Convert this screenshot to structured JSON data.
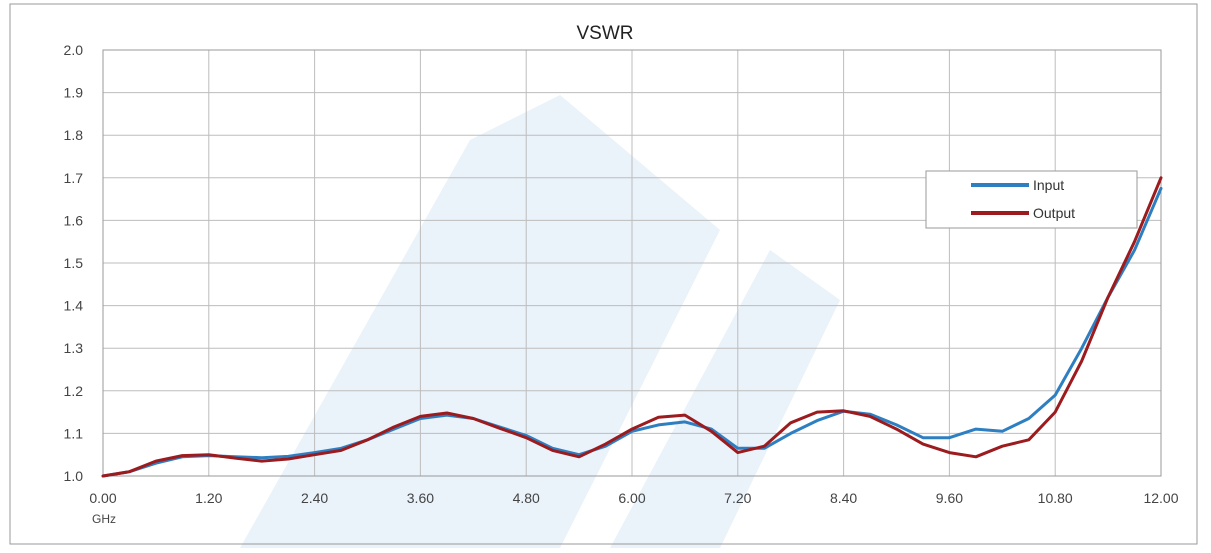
{
  "chart_data": {
    "type": "line",
    "title": "VSWR",
    "xlabel": "",
    "ylabel": "",
    "x_unit_label": "GHz",
    "xlim": [
      0,
      12
    ],
    "ylim": [
      1.0,
      2.0
    ],
    "x_ticks": [
      0,
      1.2,
      2.4,
      3.6,
      4.8,
      6.0,
      7.2,
      8.4,
      9.6,
      10.8,
      12.0
    ],
    "x_tick_labels": [
      "0.00",
      "1.20",
      "2.40",
      "3.60",
      "4.80",
      "6.00",
      "7.20",
      "8.40",
      "9.60",
      "10.80",
      "12.00"
    ],
    "y_ticks": [
      1.0,
      1.1,
      1.2,
      1.3,
      1.4,
      1.5,
      1.6,
      1.7,
      1.8,
      1.9,
      2.0
    ],
    "y_tick_labels": [
      "1.0",
      "1.1",
      "1.2",
      "1.3",
      "1.4",
      "1.5",
      "1.6",
      "1.7",
      "1.8",
      "1.9",
      "2.0"
    ],
    "grid": true,
    "legend_position": "right",
    "series": [
      {
        "name": "Input",
        "color": "#2E7FC1",
        "x": [
          0,
          0.3,
          0.6,
          0.9,
          1.2,
          1.5,
          1.8,
          2.1,
          2.4,
          2.7,
          3.0,
          3.3,
          3.6,
          3.9,
          4.2,
          4.5,
          4.8,
          5.1,
          5.4,
          5.7,
          6.0,
          6.3,
          6.6,
          6.9,
          7.2,
          7.5,
          7.8,
          8.1,
          8.4,
          8.7,
          9.0,
          9.3,
          9.6,
          9.9,
          10.2,
          10.5,
          10.8,
          11.1,
          11.4,
          11.7,
          12.0
        ],
        "values": [
          1.0,
          1.01,
          1.03,
          1.045,
          1.048,
          1.045,
          1.043,
          1.046,
          1.055,
          1.065,
          1.085,
          1.11,
          1.135,
          1.143,
          1.135,
          1.115,
          1.095,
          1.065,
          1.05,
          1.07,
          1.105,
          1.12,
          1.127,
          1.11,
          1.065,
          1.065,
          1.1,
          1.13,
          1.152,
          1.145,
          1.12,
          1.09,
          1.09,
          1.11,
          1.105,
          1.135,
          1.19,
          1.3,
          1.42,
          1.53,
          1.675
        ]
      },
      {
        "name": "Output",
        "color": "#9B1B1E",
        "x": [
          0,
          0.3,
          0.6,
          0.9,
          1.2,
          1.5,
          1.8,
          2.1,
          2.4,
          2.7,
          3.0,
          3.3,
          3.6,
          3.9,
          4.2,
          4.5,
          4.8,
          5.1,
          5.4,
          5.7,
          6.0,
          6.3,
          6.6,
          6.9,
          7.2,
          7.5,
          7.8,
          8.1,
          8.4,
          8.7,
          9.0,
          9.3,
          9.6,
          9.9,
          10.2,
          10.5,
          10.8,
          11.1,
          11.4,
          11.7,
          12.0
        ],
        "values": [
          1.0,
          1.01,
          1.035,
          1.048,
          1.05,
          1.042,
          1.035,
          1.04,
          1.05,
          1.06,
          1.085,
          1.115,
          1.14,
          1.148,
          1.135,
          1.112,
          1.09,
          1.06,
          1.045,
          1.075,
          1.11,
          1.138,
          1.143,
          1.105,
          1.055,
          1.07,
          1.125,
          1.15,
          1.153,
          1.14,
          1.11,
          1.075,
          1.055,
          1.045,
          1.07,
          1.085,
          1.15,
          1.27,
          1.42,
          1.55,
          1.7
        ]
      }
    ]
  }
}
